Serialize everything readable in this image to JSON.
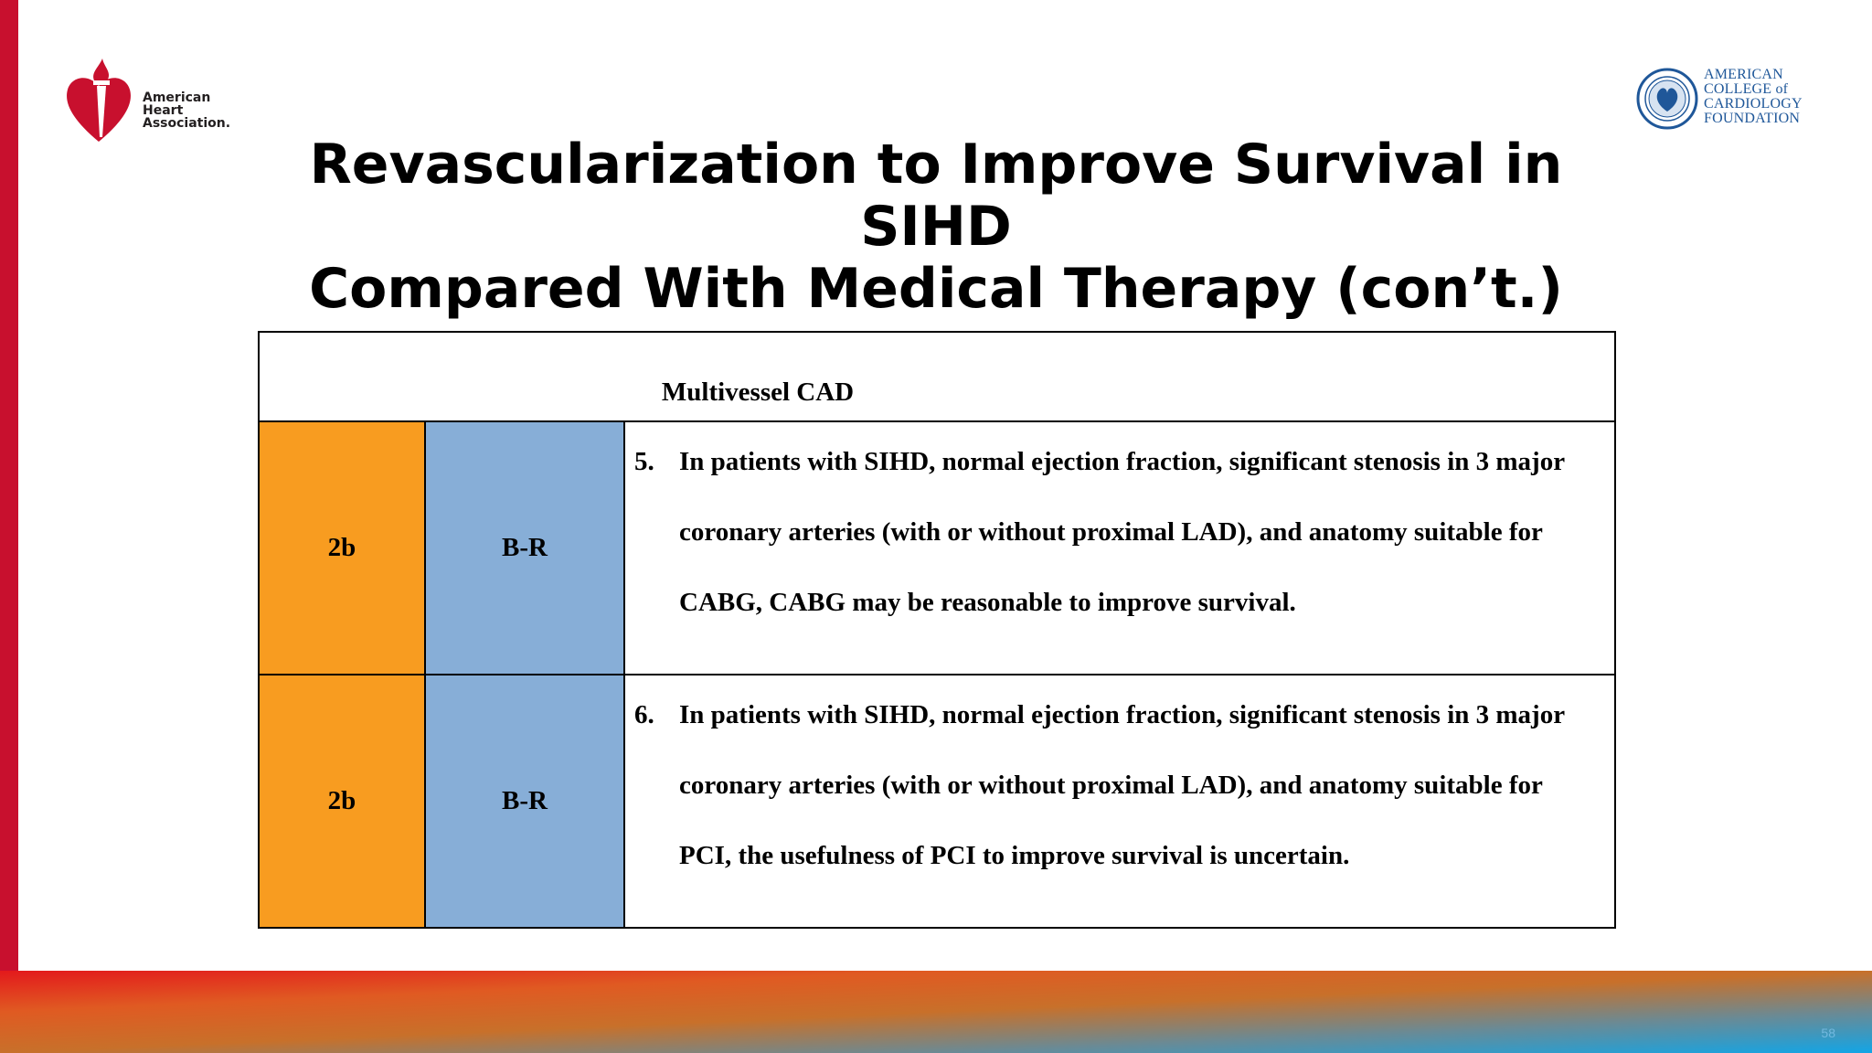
{
  "logos": {
    "aha": [
      "American",
      "Heart",
      "Association."
    ],
    "acc": [
      "AMERICAN",
      "COLLEGE of",
      "CARDIOLOGY",
      "FOUNDATION"
    ]
  },
  "title_lines": [
    "Revascularization to Improve Survival in SIHD",
    "Compared With Medical Therapy (con’t.)"
  ],
  "table": {
    "header": "Multivessel CAD",
    "rows": [
      {
        "cor": "2b",
        "loe": "B-R",
        "number": "5.",
        "text": "In patients with SIHD, normal ejection fraction, significant stenosis in 3 major coronary arteries (with or without proximal LAD), and anatomy suitable for CABG, CABG may be reasonable to improve survival."
      },
      {
        "cor": "2b",
        "loe": "B-R",
        "number": "6.",
        "text": "In patients with SIHD, normal ejection fraction, significant stenosis in 3 major coronary arteries (with or without proximal LAD), and anatomy suitable for PCI, the usefulness of PCI to improve survival is uncertain."
      }
    ]
  },
  "slide_number": "58",
  "colors": {
    "aha_red": "#c8102e",
    "cor_orange": "#f89c20",
    "loe_blue": "#87aed7",
    "acc_blue": "#1f5799"
  }
}
